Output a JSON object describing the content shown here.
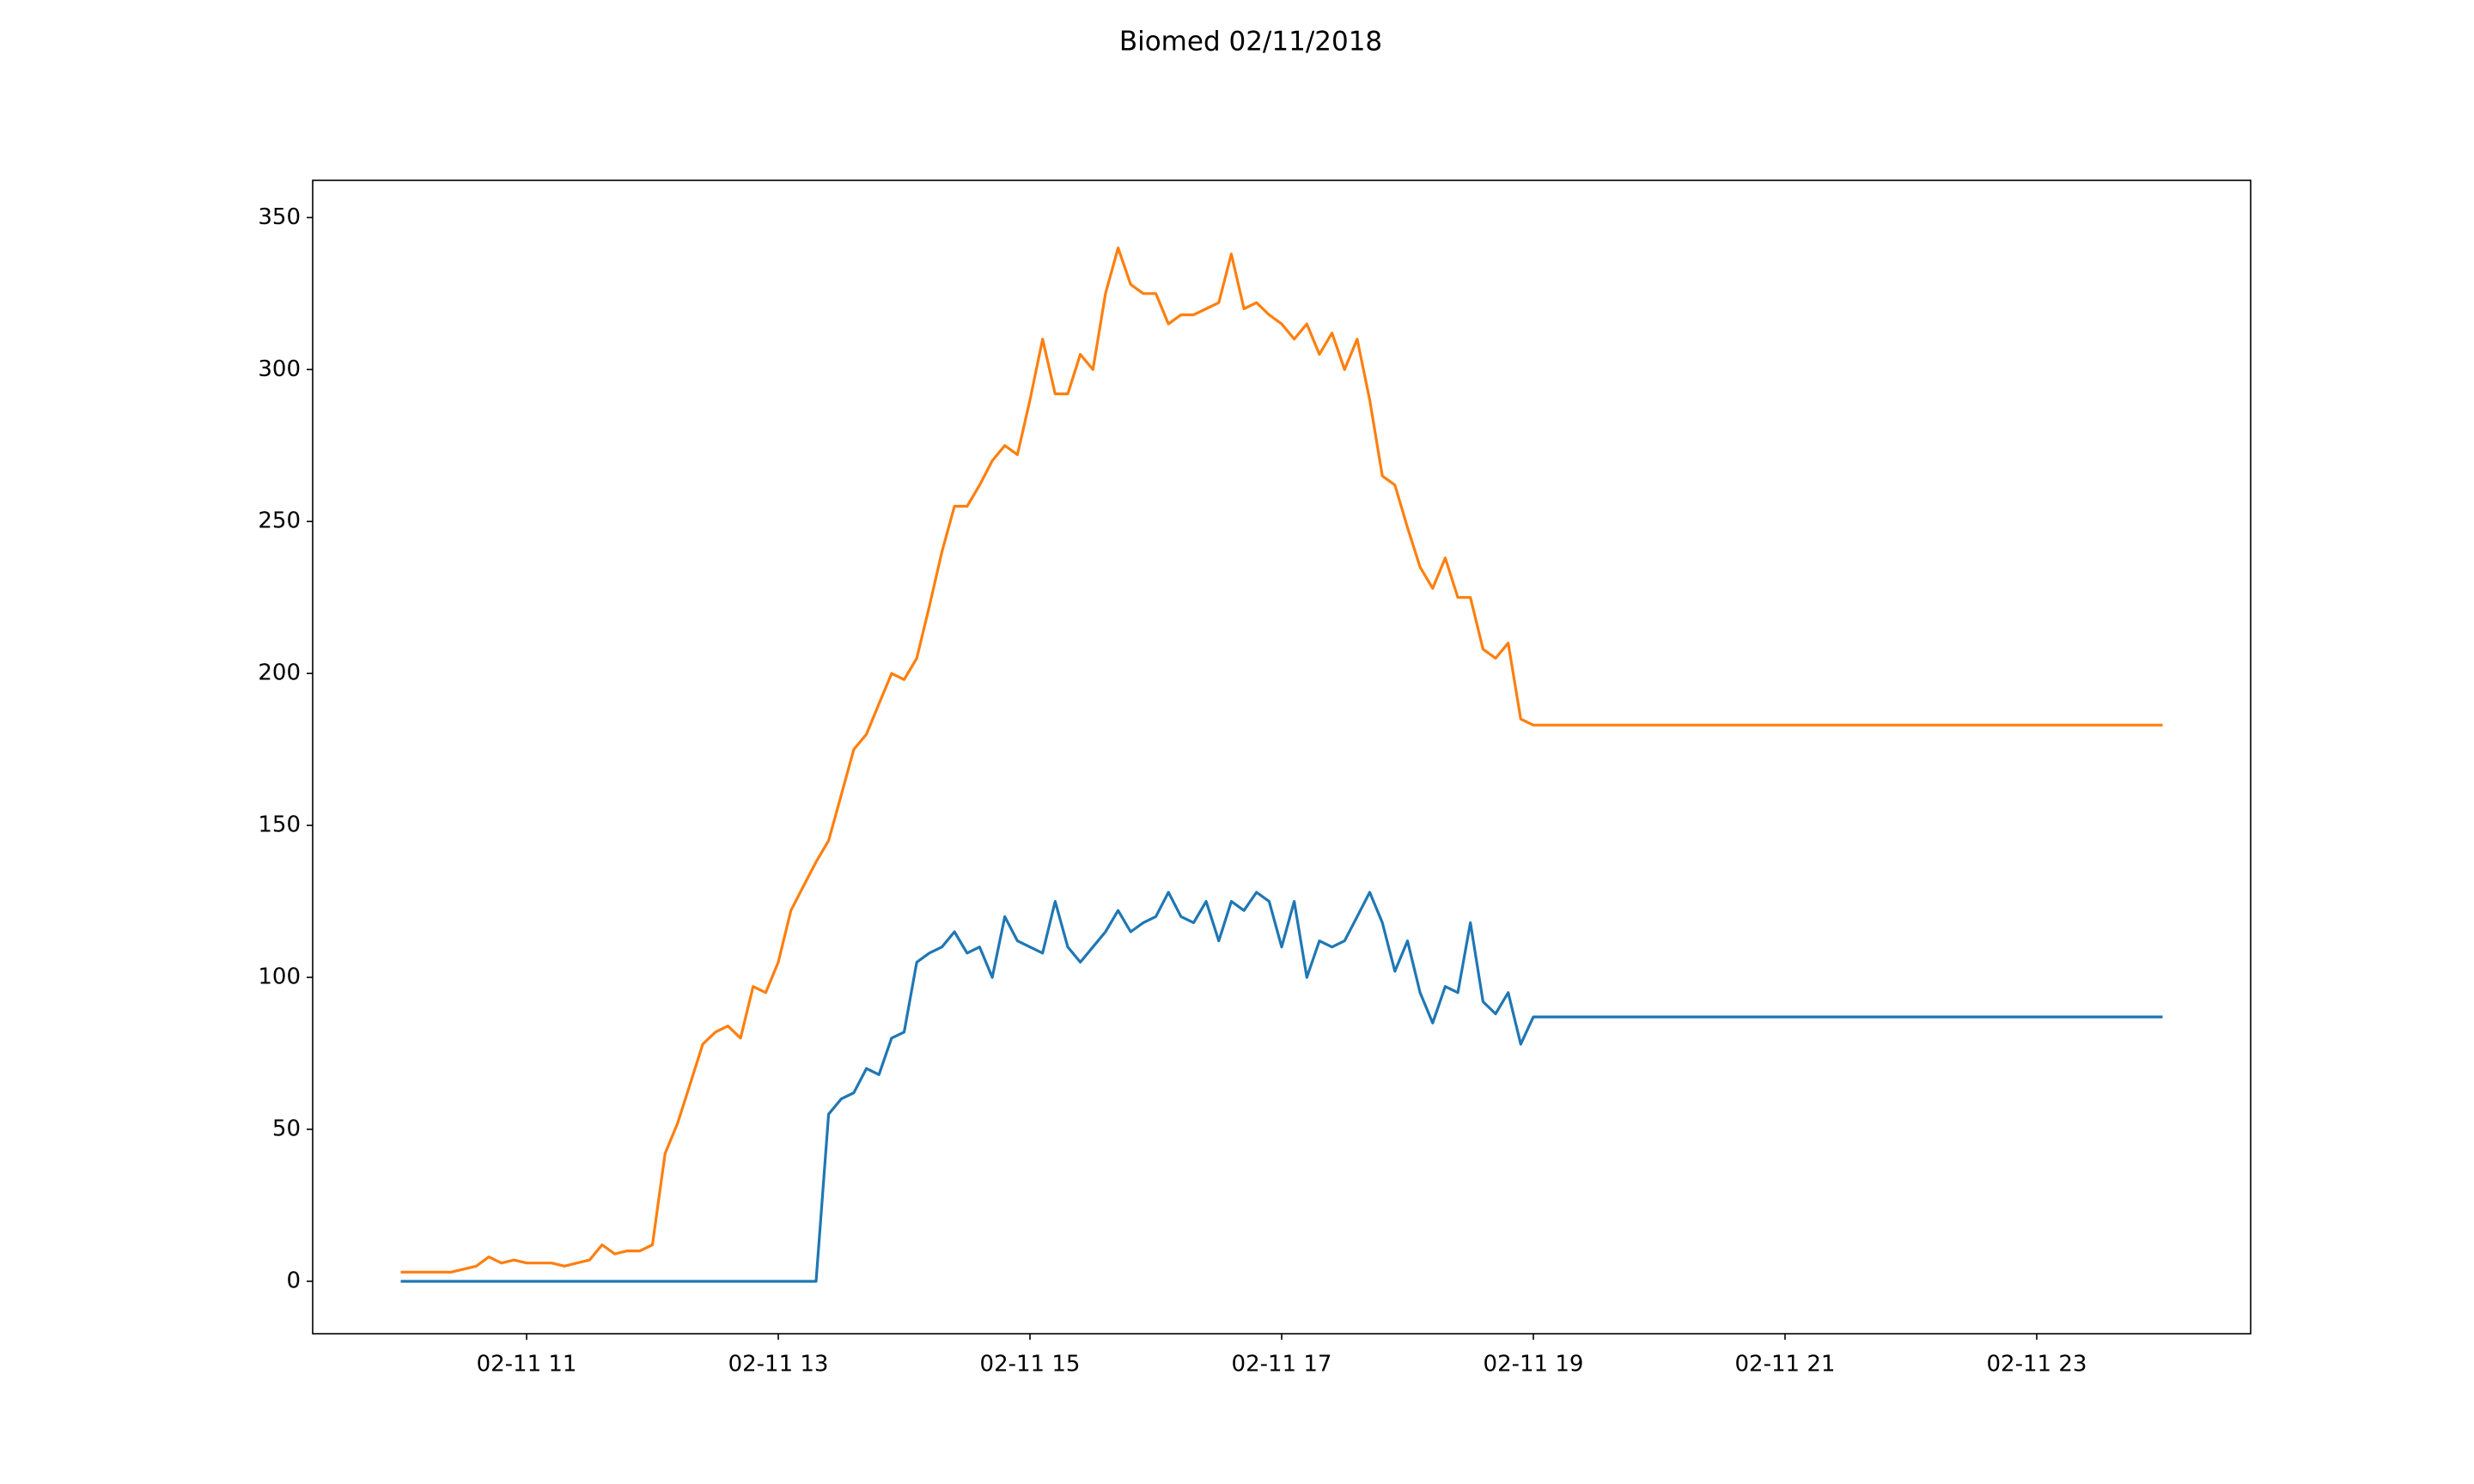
{
  "chart_data": {
    "type": "line",
    "title": "Biomed 02/11/2018",
    "x": [
      10.0,
      10.1,
      10.2,
      10.3,
      10.4,
      10.5,
      10.6,
      10.7,
      10.8,
      10.9,
      11.0,
      11.1,
      11.2,
      11.3,
      11.4,
      11.5,
      11.6,
      11.7,
      11.8,
      11.9,
      12.0,
      12.1,
      12.2,
      12.3,
      12.4,
      12.5,
      12.6,
      12.7,
      12.8,
      12.9,
      13.0,
      13.1,
      13.2,
      13.3,
      13.4,
      13.5,
      13.6,
      13.7,
      13.8,
      13.9,
      14.0,
      14.1,
      14.2,
      14.3,
      14.4,
      14.5,
      14.6,
      14.7,
      14.8,
      14.9,
      15.0,
      15.1,
      15.2,
      15.3,
      15.4,
      15.5,
      15.6,
      15.7,
      15.8,
      15.9,
      16.0,
      16.1,
      16.2,
      16.3,
      16.4,
      16.5,
      16.6,
      16.7,
      16.8,
      16.9,
      17.0,
      17.1,
      17.2,
      17.3,
      17.4,
      17.5,
      17.6,
      17.7,
      17.8,
      17.9,
      18.0,
      18.1,
      18.2,
      18.3,
      18.4,
      18.5,
      18.6,
      18.7,
      18.8,
      18.9,
      19.0,
      24.0
    ],
    "series": [
      {
        "color": "#1f77b4",
        "values": [
          0,
          0,
          0,
          0,
          0,
          0,
          0,
          0,
          0,
          0,
          0,
          0,
          0,
          0,
          0,
          0,
          0,
          0,
          0,
          0,
          0,
          0,
          0,
          0,
          0,
          0,
          0,
          0,
          0,
          0,
          0,
          0,
          0,
          0,
          55,
          60,
          62,
          70,
          68,
          80,
          82,
          105,
          108,
          110,
          115,
          108,
          110,
          100,
          120,
          112,
          110,
          108,
          125,
          110,
          105,
          110,
          115,
          122,
          115,
          118,
          120,
          128,
          120,
          118,
          125,
          112,
          125,
          122,
          128,
          125,
          110,
          125,
          100,
          112,
          110,
          112,
          120,
          128,
          118,
          102,
          112,
          95,
          85,
          97,
          95,
          118,
          92,
          88,
          95,
          78,
          87,
          87
        ]
      },
      {
        "color": "#ff7f0e",
        "values": [
          3,
          3,
          3,
          3,
          3,
          4,
          5,
          8,
          6,
          7,
          6,
          6,
          6,
          5,
          6,
          7,
          12,
          9,
          10,
          10,
          12,
          42,
          52,
          65,
          78,
          82,
          84,
          80,
          97,
          95,
          105,
          122,
          130,
          138,
          145,
          160,
          175,
          180,
          190,
          200,
          198,
          205,
          222,
          240,
          255,
          255,
          262,
          270,
          275,
          272,
          290,
          310,
          292,
          292,
          305,
          300,
          325,
          340,
          328,
          325,
          325,
          315,
          318,
          318,
          320,
          322,
          338,
          320,
          322,
          318,
          315,
          310,
          315,
          305,
          312,
          300,
          310,
          290,
          265,
          262,
          248,
          235,
          228,
          238,
          225,
          225,
          208,
          205,
          210,
          185,
          183,
          183
        ]
      }
    ],
    "xlim": [
      9.3,
      24.7
    ],
    "xticks": [
      {
        "value": 11,
        "label": "02-11 11"
      },
      {
        "value": 13,
        "label": "02-11 13"
      },
      {
        "value": 15,
        "label": "02-11 15"
      },
      {
        "value": 17,
        "label": "02-11 17"
      },
      {
        "value": 19,
        "label": "02-11 19"
      },
      {
        "value": 21,
        "label": "02-11 21"
      },
      {
        "value": 23,
        "label": "02-11 23"
      }
    ],
    "ylim": [
      -17.25,
      362.25
    ],
    "yticks": [
      0,
      50,
      100,
      150,
      200,
      250,
      300,
      350
    ]
  }
}
